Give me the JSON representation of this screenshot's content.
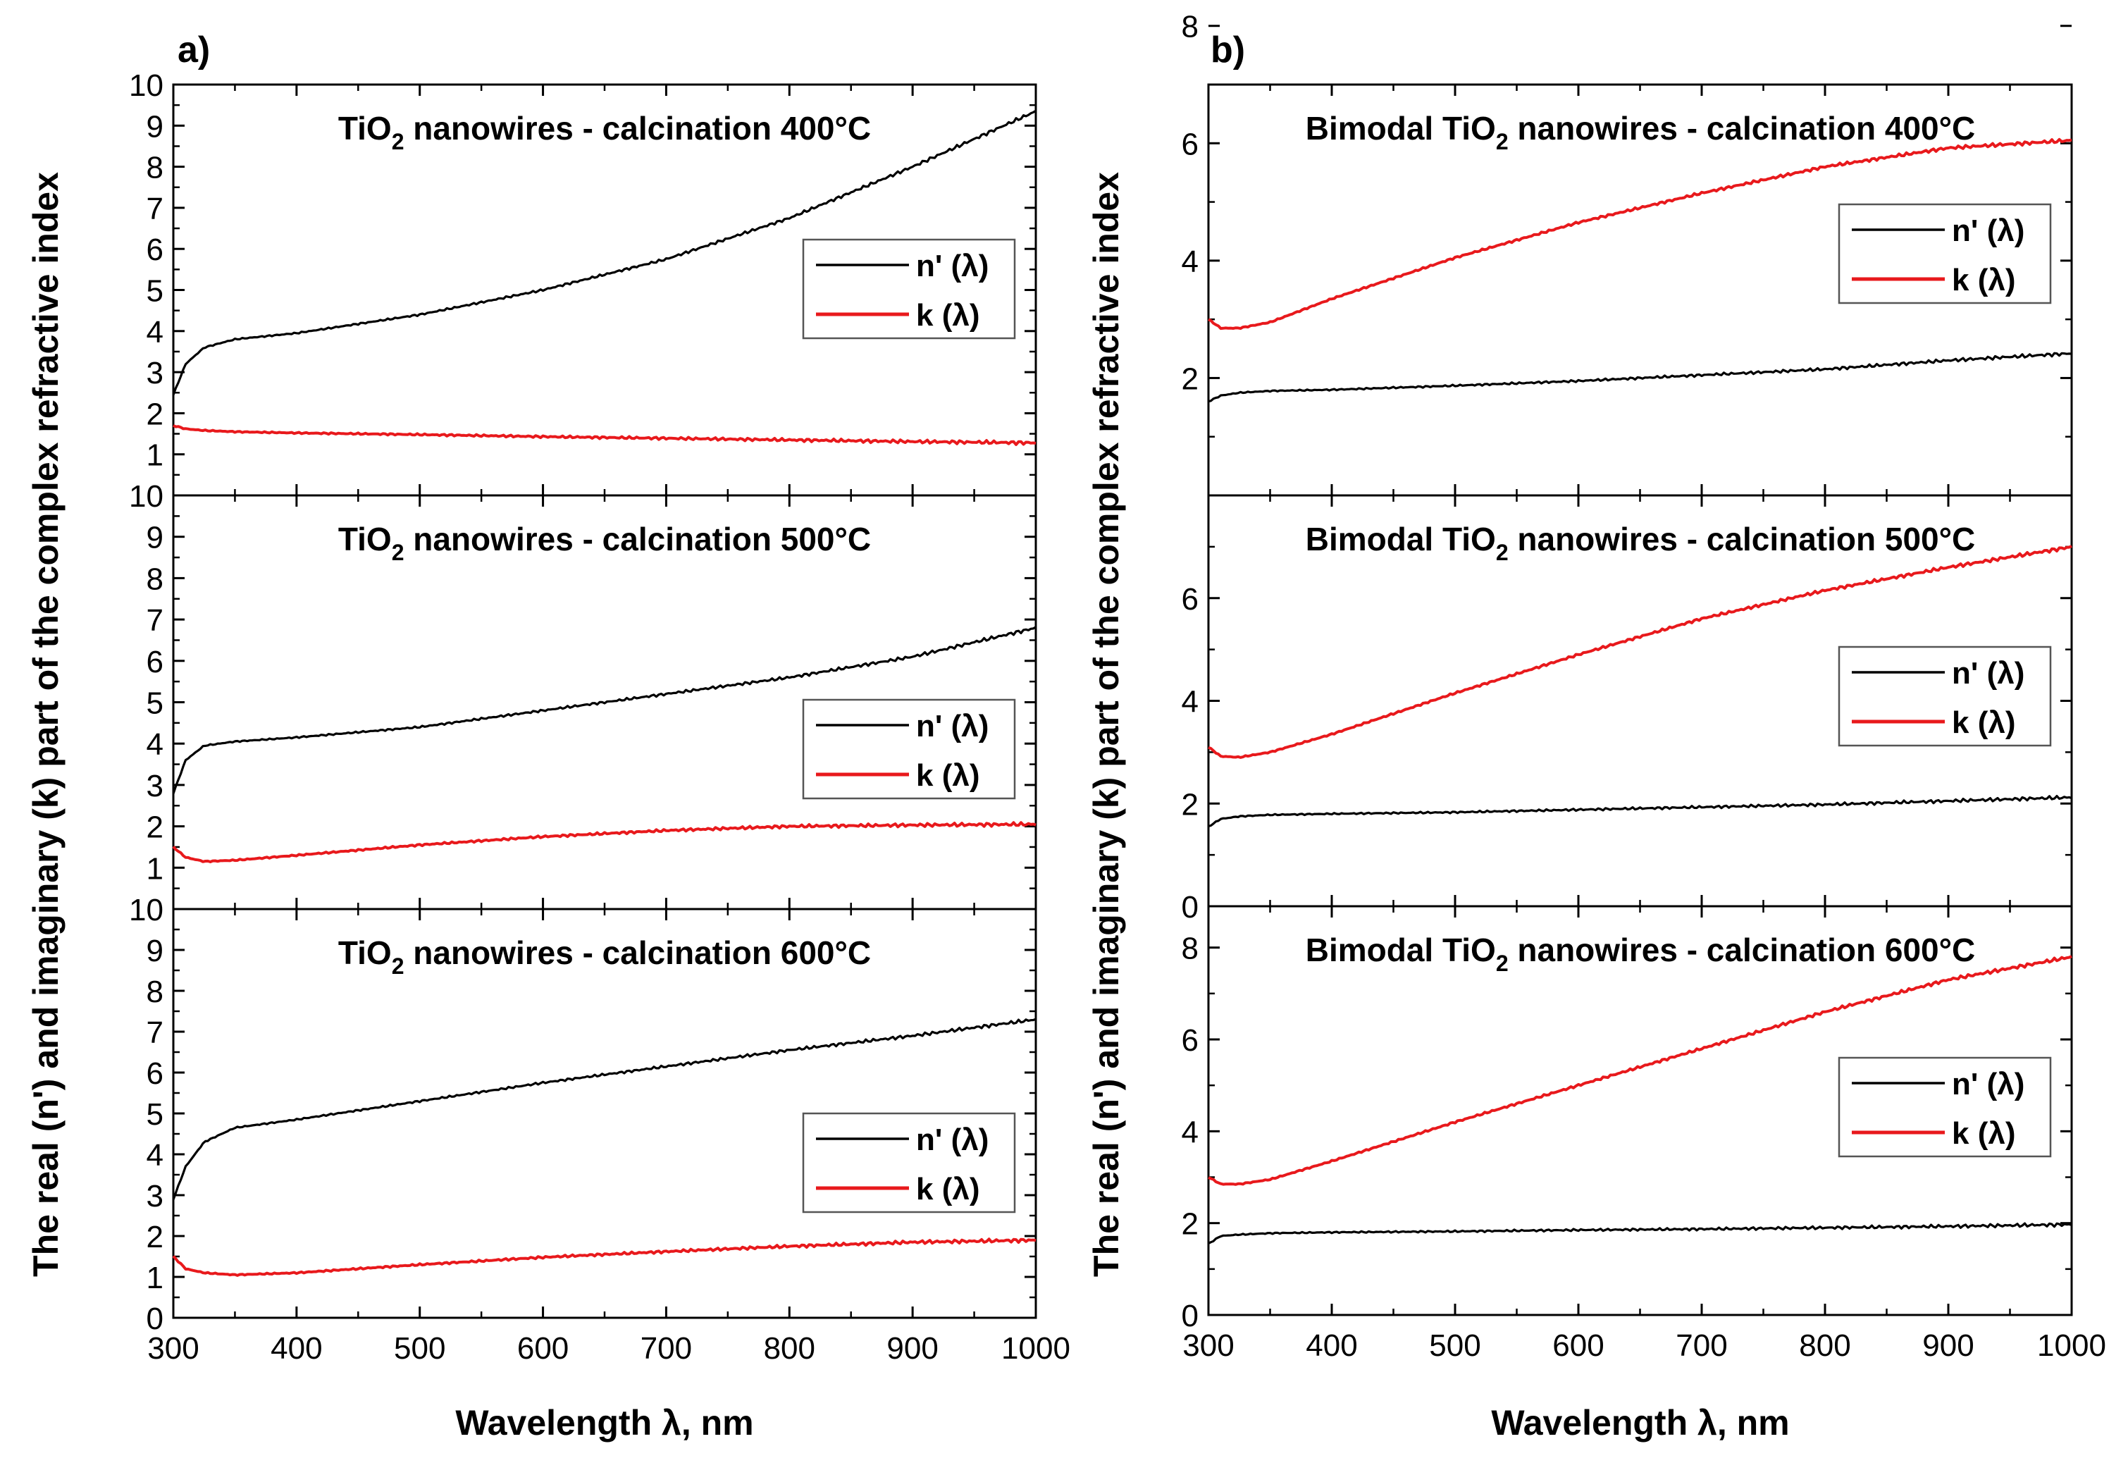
{
  "figure": {
    "xlabel": "Wavelength λ, nm",
    "ylabel": "The real (n') and imaginary (k) part of the complex refractive index",
    "panel_a_label": "a)",
    "panel_b_label": "b)"
  },
  "colors": {
    "n_series": "#000000",
    "k_series": "#e8191c",
    "axis": "#000000",
    "background": "#ffffff"
  },
  "chart_data": [
    {
      "type": "line",
      "panel": "a)",
      "title": "TiO2 nanowires - calcination 400°C",
      "title_parts": {
        "pre": "TiO",
        "sub": "2",
        "post": " nanowires - calcination 400°C"
      },
      "xlim": [
        300,
        1000
      ],
      "ylim": [
        0,
        10
      ],
      "xticks": [
        300,
        400,
        500,
        600,
        700,
        800,
        900,
        1000
      ],
      "yticks": [
        1,
        2,
        3,
        4,
        5,
        6,
        7,
        8,
        9,
        10
      ],
      "x": [
        300,
        310,
        325,
        350,
        400,
        500,
        600,
        700,
        800,
        900,
        1000
      ],
      "series": [
        {
          "name": "n' (λ)",
          "values": [
            2.45,
            3.2,
            3.6,
            3.8,
            3.95,
            4.4,
            5.0,
            5.75,
            6.75,
            8.0,
            9.35
          ]
        },
        {
          "name": "k (λ)",
          "values": [
            1.7,
            1.62,
            1.58,
            1.55,
            1.52,
            1.48,
            1.43,
            1.39,
            1.35,
            1.31,
            1.28
          ]
        }
      ],
      "legend": [
        "n' (λ)",
        "k (λ)"
      ]
    },
    {
      "type": "line",
      "panel": "a)",
      "title": "TiO2 nanowires - calcination 500°C",
      "title_parts": {
        "pre": "TiO",
        "sub": "2",
        "post": " nanowires - calcination 500°C"
      },
      "xlim": [
        300,
        1000
      ],
      "ylim": [
        0,
        10
      ],
      "xticks": [
        300,
        400,
        500,
        600,
        700,
        800,
        900,
        1000
      ],
      "yticks": [
        1,
        2,
        3,
        4,
        5,
        6,
        7,
        8,
        9,
        10
      ],
      "x": [
        300,
        310,
        325,
        350,
        400,
        500,
        600,
        700,
        800,
        900,
        1000
      ],
      "series": [
        {
          "name": "n' (λ)",
          "values": [
            2.8,
            3.6,
            3.95,
            4.05,
            4.15,
            4.4,
            4.8,
            5.2,
            5.6,
            6.1,
            6.8
          ]
        },
        {
          "name": "k (λ)",
          "values": [
            1.5,
            1.25,
            1.15,
            1.18,
            1.3,
            1.55,
            1.75,
            1.9,
            2.0,
            2.03,
            2.05
          ]
        }
      ],
      "legend": [
        "n' (λ)",
        "k (λ)"
      ]
    },
    {
      "type": "line",
      "panel": "a)",
      "title": "TiO2 nanowires - calcination 600°C",
      "title_parts": {
        "pre": "TiO",
        "sub": "2",
        "post": " nanowires - calcination 600°C"
      },
      "xlim": [
        300,
        1000
      ],
      "ylim": [
        0,
        10
      ],
      "xticks": [
        300,
        400,
        500,
        600,
        700,
        800,
        900,
        1000
      ],
      "yticks": [
        0,
        1,
        2,
        3,
        4,
        5,
        6,
        7,
        8,
        9,
        10
      ],
      "x": [
        300,
        310,
        325,
        350,
        400,
        500,
        600,
        700,
        800,
        900,
        1000
      ],
      "series": [
        {
          "name": "n' (λ)",
          "values": [
            2.9,
            3.7,
            4.3,
            4.65,
            4.85,
            5.3,
            5.75,
            6.15,
            6.55,
            6.9,
            7.3
          ]
        },
        {
          "name": "k (λ)",
          "values": [
            1.5,
            1.2,
            1.1,
            1.05,
            1.1,
            1.3,
            1.48,
            1.62,
            1.75,
            1.85,
            1.9
          ]
        }
      ],
      "legend": [
        "n' (λ)",
        "k (λ)"
      ]
    },
    {
      "type": "line",
      "panel": "b)",
      "title": "Bimodal TiO2 nanowires - calcination 400°C",
      "title_parts": {
        "pre": "Bimodal TiO",
        "sub": "2",
        "post": " nanowires - calcination 400°C"
      },
      "xlim": [
        300,
        1000
      ],
      "ylim": [
        0,
        7
      ],
      "xticks": [
        300,
        400,
        500,
        600,
        700,
        800,
        900,
        1000
      ],
      "yticks": [
        2,
        4,
        6,
        8
      ],
      "x": [
        300,
        310,
        325,
        350,
        400,
        500,
        600,
        700,
        800,
        900,
        1000
      ],
      "series": [
        {
          "name": "n' (λ)",
          "values": [
            1.6,
            1.7,
            1.75,
            1.78,
            1.8,
            1.87,
            1.95,
            2.05,
            2.15,
            2.3,
            2.42
          ]
        },
        {
          "name": "k (λ)",
          "values": [
            3.0,
            2.85,
            2.85,
            2.95,
            3.35,
            4.05,
            4.65,
            5.15,
            5.6,
            5.92,
            6.05
          ]
        }
      ],
      "legend": [
        "n' (λ)",
        "k (λ)"
      ]
    },
    {
      "type": "line",
      "panel": "b)",
      "title": "Bimodal TiO2 nanowires - calcination 500°C",
      "title_parts": {
        "pre": "Bimodal TiO",
        "sub": "2",
        "post": " nanowires - calcination 500°C"
      },
      "xlim": [
        300,
        1000
      ],
      "ylim": [
        0,
        8
      ],
      "xticks": [
        300,
        400,
        500,
        600,
        700,
        800,
        900,
        1000
      ],
      "yticks": [
        0,
        2,
        4,
        6
      ],
      "x": [
        300,
        310,
        325,
        350,
        400,
        500,
        600,
        700,
        800,
        900,
        1000
      ],
      "series": [
        {
          "name": "n' (λ)",
          "values": [
            1.55,
            1.7,
            1.75,
            1.78,
            1.8,
            1.83,
            1.88,
            1.93,
            1.98,
            2.05,
            2.12
          ]
        },
        {
          "name": "k (λ)",
          "values": [
            3.1,
            2.92,
            2.9,
            3.0,
            3.35,
            4.15,
            4.9,
            5.6,
            6.15,
            6.6,
            7.0
          ]
        }
      ],
      "legend": [
        "n' (λ)",
        "k (λ)"
      ]
    },
    {
      "type": "line",
      "panel": "b)",
      "title": "Bimodal TiO2 nanowires - calcination 600°C",
      "title_parts": {
        "pre": "Bimodal TiO",
        "sub": "2",
        "post": " nanowires - calcination 600°C"
      },
      "xlim": [
        300,
        1000
      ],
      "ylim": [
        0,
        8.9
      ],
      "xticks": [
        300,
        400,
        500,
        600,
        700,
        800,
        900,
        1000
      ],
      "yticks": [
        0,
        2,
        4,
        6,
        8
      ],
      "x": [
        300,
        310,
        325,
        350,
        400,
        500,
        600,
        700,
        800,
        900,
        1000
      ],
      "series": [
        {
          "name": "n' (λ)",
          "values": [
            1.55,
            1.72,
            1.75,
            1.78,
            1.8,
            1.82,
            1.85,
            1.87,
            1.9,
            1.93,
            1.97
          ]
        },
        {
          "name": "k (λ)",
          "values": [
            3.0,
            2.85,
            2.85,
            2.95,
            3.35,
            4.2,
            5.0,
            5.8,
            6.6,
            7.3,
            7.8
          ]
        }
      ],
      "legend": [
        "n' (λ)",
        "k (λ)"
      ]
    }
  ]
}
